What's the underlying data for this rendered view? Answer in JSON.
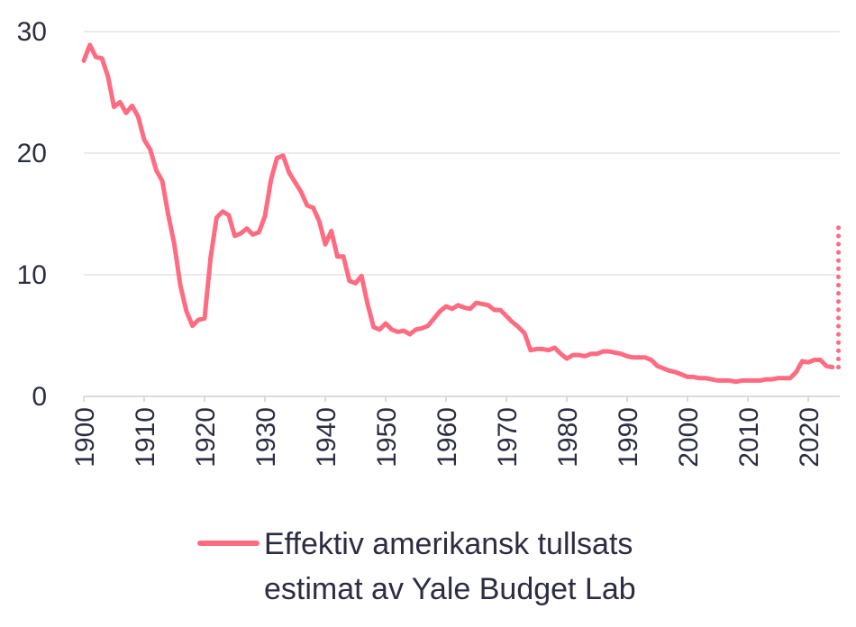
{
  "chart_data": {
    "type": "line",
    "title": "",
    "xlabel": "",
    "ylabel": "",
    "xlim": [
      1900,
      2025
    ],
    "ylim": [
      0,
      30
    ],
    "y_ticks": [
      "0",
      "10",
      "20",
      "30"
    ],
    "x_ticks": [
      "1900",
      "1910",
      "1920",
      "1930",
      "1940",
      "1950",
      "1960",
      "1970",
      "1980",
      "1990",
      "2000",
      "2010",
      "2020"
    ],
    "grid": "horizontal",
    "legend": {
      "placement": "bottom",
      "line1": "Effektiv amerikansk tullsats",
      "line2": "estimat av Yale Budget Lab"
    },
    "series": [
      {
        "name": "Effektiv amerikansk tullsats estimat av Yale Budget Lab",
        "color": "#ff6b81",
        "style": "solid",
        "points": [
          [
            1900,
            27.6
          ],
          [
            1901,
            28.9
          ],
          [
            1902,
            27.9
          ],
          [
            1903,
            27.8
          ],
          [
            1904,
            26.3
          ],
          [
            1905,
            23.8
          ],
          [
            1906,
            24.2
          ],
          [
            1907,
            23.3
          ],
          [
            1908,
            23.9
          ],
          [
            1909,
            23.0
          ],
          [
            1910,
            21.1
          ],
          [
            1911,
            20.3
          ],
          [
            1912,
            18.6
          ],
          [
            1913,
            17.7
          ],
          [
            1914,
            14.9
          ],
          [
            1915,
            12.5
          ],
          [
            1916,
            9.1
          ],
          [
            1917,
            7.0
          ],
          [
            1918,
            5.8
          ],
          [
            1919,
            6.3
          ],
          [
            1920,
            6.4
          ],
          [
            1921,
            11.4
          ],
          [
            1922,
            14.7
          ],
          [
            1923,
            15.2
          ],
          [
            1924,
            14.9
          ],
          [
            1925,
            13.2
          ],
          [
            1926,
            13.4
          ],
          [
            1927,
            13.8
          ],
          [
            1928,
            13.3
          ],
          [
            1929,
            13.5
          ],
          [
            1930,
            14.8
          ],
          [
            1931,
            17.8
          ],
          [
            1932,
            19.6
          ],
          [
            1933,
            19.8
          ],
          [
            1934,
            18.4
          ],
          [
            1935,
            17.6
          ],
          [
            1936,
            16.8
          ],
          [
            1937,
            15.7
          ],
          [
            1938,
            15.5
          ],
          [
            1939,
            14.4
          ],
          [
            1940,
            12.5
          ],
          [
            1941,
            13.6
          ],
          [
            1942,
            11.5
          ],
          [
            1943,
            11.5
          ],
          [
            1944,
            9.5
          ],
          [
            1945,
            9.3
          ],
          [
            1946,
            9.9
          ],
          [
            1947,
            7.6
          ],
          [
            1948,
            5.7
          ],
          [
            1949,
            5.5
          ],
          [
            1950,
            6.0
          ],
          [
            1951,
            5.5
          ],
          [
            1952,
            5.3
          ],
          [
            1953,
            5.4
          ],
          [
            1954,
            5.1
          ],
          [
            1955,
            5.5
          ],
          [
            1956,
            5.6
          ],
          [
            1957,
            5.8
          ],
          [
            1958,
            6.4
          ],
          [
            1959,
            7.0
          ],
          [
            1960,
            7.4
          ],
          [
            1961,
            7.2
          ],
          [
            1962,
            7.5
          ],
          [
            1963,
            7.3
          ],
          [
            1964,
            7.2
          ],
          [
            1965,
            7.7
          ],
          [
            1966,
            7.6
          ],
          [
            1967,
            7.5
          ],
          [
            1968,
            7.1
          ],
          [
            1969,
            7.1
          ],
          [
            1970,
            6.6
          ],
          [
            1971,
            6.1
          ],
          [
            1972,
            5.7
          ],
          [
            1973,
            5.2
          ],
          [
            1974,
            3.8
          ],
          [
            1975,
            3.9
          ],
          [
            1976,
            3.9
          ],
          [
            1977,
            3.8
          ],
          [
            1978,
            4.0
          ],
          [
            1979,
            3.5
          ],
          [
            1980,
            3.1
          ],
          [
            1981,
            3.4
          ],
          [
            1982,
            3.4
          ],
          [
            1983,
            3.3
          ],
          [
            1984,
            3.5
          ],
          [
            1985,
            3.5
          ],
          [
            1986,
            3.7
          ],
          [
            1987,
            3.7
          ],
          [
            1988,
            3.6
          ],
          [
            1989,
            3.5
          ],
          [
            1990,
            3.3
          ],
          [
            1991,
            3.2
          ],
          [
            1992,
            3.2
          ],
          [
            1993,
            3.2
          ],
          [
            1994,
            3.0
          ],
          [
            1995,
            2.5
          ],
          [
            1996,
            2.3
          ],
          [
            1997,
            2.1
          ],
          [
            1998,
            2.0
          ],
          [
            1999,
            1.8
          ],
          [
            2000,
            1.6
          ],
          [
            2001,
            1.6
          ],
          [
            2002,
            1.5
          ],
          [
            2003,
            1.5
          ],
          [
            2004,
            1.4
          ],
          [
            2005,
            1.3
          ],
          [
            2006,
            1.3
          ],
          [
            2007,
            1.3
          ],
          [
            2008,
            1.2
          ],
          [
            2009,
            1.3
          ],
          [
            2010,
            1.3
          ],
          [
            2011,
            1.3
          ],
          [
            2012,
            1.3
          ],
          [
            2013,
            1.4
          ],
          [
            2014,
            1.4
          ],
          [
            2015,
            1.5
          ],
          [
            2016,
            1.5
          ],
          [
            2017,
            1.5
          ],
          [
            2018,
            2.0
          ],
          [
            2019,
            2.9
          ],
          [
            2020,
            2.8
          ],
          [
            2021,
            3.0
          ],
          [
            2022,
            3.0
          ],
          [
            2023,
            2.5
          ],
          [
            2024,
            2.4
          ]
        ]
      },
      {
        "name": "",
        "color": "#ff6b81",
        "style": "dotted",
        "points": [
          [
            2025,
            2.4
          ],
          [
            2025,
            14.4
          ]
        ]
      }
    ]
  }
}
